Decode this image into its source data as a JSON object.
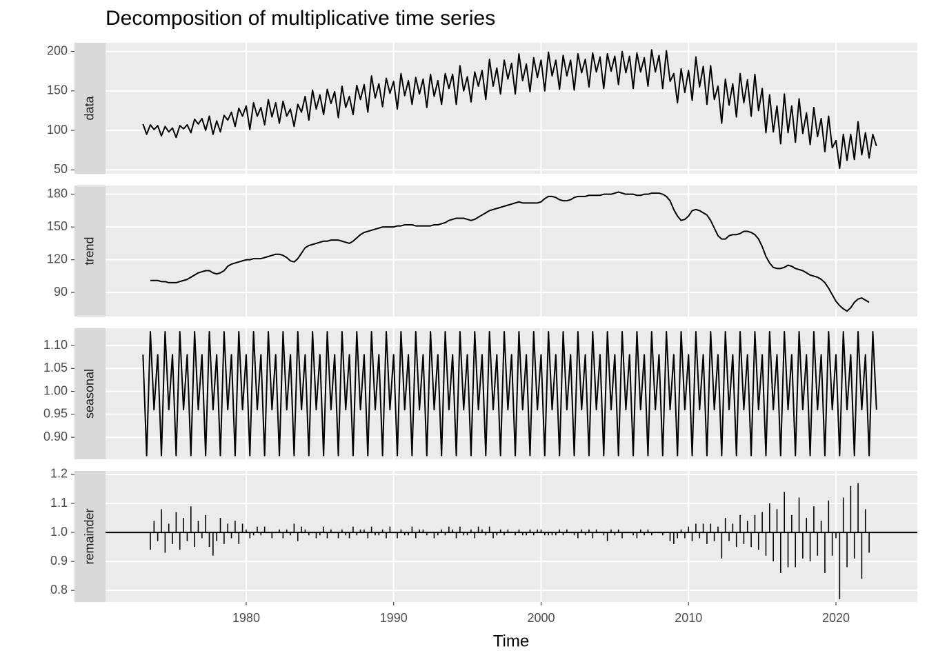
{
  "chart_data": {
    "type": "line",
    "title": "Decomposition of multiplicative time series",
    "xlabel": "Time",
    "grid": true,
    "xlim": [
      1970.46,
      2025.52
    ],
    "xticks": [
      1980,
      1990,
      2000,
      2010,
      2020
    ],
    "x": [
      1973,
      1973.25,
      1973.5,
      1973.75,
      1974,
      1974.25,
      1974.5,
      1974.75,
      1975,
      1975.25,
      1975.5,
      1975.75,
      1976,
      1976.25,
      1976.5,
      1976.75,
      1977,
      1977.25,
      1977.5,
      1977.75,
      1978,
      1978.25,
      1978.5,
      1978.75,
      1979,
      1979.25,
      1979.5,
      1979.75,
      1980,
      1980.25,
      1980.5,
      1980.75,
      1981,
      1981.25,
      1981.5,
      1981.75,
      1982,
      1982.25,
      1982.5,
      1982.75,
      1983,
      1983.25,
      1983.5,
      1983.75,
      1984,
      1984.25,
      1984.5,
      1984.75,
      1985,
      1985.25,
      1985.5,
      1985.75,
      1986,
      1986.25,
      1986.5,
      1986.75,
      1987,
      1987.25,
      1987.5,
      1987.75,
      1988,
      1988.25,
      1988.5,
      1988.75,
      1989,
      1989.25,
      1989.5,
      1989.75,
      1990,
      1990.25,
      1990.5,
      1990.75,
      1991,
      1991.25,
      1991.5,
      1991.75,
      1992,
      1992.25,
      1992.5,
      1992.75,
      1993,
      1993.25,
      1993.5,
      1993.75,
      1994,
      1994.25,
      1994.5,
      1994.75,
      1995,
      1995.25,
      1995.5,
      1995.75,
      1996,
      1996.25,
      1996.5,
      1996.75,
      1997,
      1997.25,
      1997.5,
      1997.75,
      1998,
      1998.25,
      1998.5,
      1998.75,
      1999,
      1999.25,
      1999.5,
      1999.75,
      2000,
      2000.25,
      2000.5,
      2000.75,
      2001,
      2001.25,
      2001.5,
      2001.75,
      2002,
      2002.25,
      2002.5,
      2002.75,
      2003,
      2003.25,
      2003.5,
      2003.75,
      2004,
      2004.25,
      2004.5,
      2004.75,
      2005,
      2005.25,
      2005.5,
      2005.75,
      2006,
      2006.25,
      2006.5,
      2006.75,
      2007,
      2007.25,
      2007.5,
      2007.75,
      2008,
      2008.25,
      2008.5,
      2008.75,
      2009,
      2009.25,
      2009.5,
      2009.75,
      2010,
      2010.25,
      2010.5,
      2010.75,
      2011,
      2011.25,
      2011.5,
      2011.75,
      2012,
      2012.25,
      2012.5,
      2012.75,
      2013,
      2013.25,
      2013.5,
      2013.75,
      2014,
      2014.25,
      2014.5,
      2014.75,
      2015,
      2015.25,
      2015.5,
      2015.75,
      2016,
      2016.25,
      2016.5,
      2016.75,
      2017,
      2017.25,
      2017.5,
      2017.75,
      2018,
      2018.25,
      2018.5,
      2018.75,
      2019,
      2019.25,
      2019.5,
      2019.75,
      2020,
      2020.25,
      2020.5,
      2020.75,
      2021,
      2021.25,
      2021.5,
      2021.75,
      2022,
      2022.25,
      2022.5,
      2022.75
    ],
    "series": [
      {
        "name": "data",
        "type": "line",
        "color": "#000000",
        "ylim": [
          45,
          211
        ],
        "yticks": [
          50,
          100,
          150,
          200
        ],
        "values": [
          108,
          95,
          107,
          101,
          106,
          93,
          105,
          98,
          103,
          91,
          106,
          102,
          107,
          97,
          114,
          108,
          115,
          100,
          118,
          95,
          112,
          98,
          119,
          113,
          123,
          105,
          128,
          118,
          131,
          101,
          135,
          118,
          129,
          107,
          139,
          117,
          135,
          109,
          137,
          118,
          127,
          105,
          133,
          123,
          143,
          113,
          151,
          127,
          145,
          120,
          152,
          134,
          149,
          116,
          156,
          129,
          143,
          120,
          157,
          139,
          158,
          123,
          169,
          141,
          159,
          130,
          166,
          147,
          162,
          127,
          172,
          144,
          163,
          133,
          167,
          146,
          165,
          129,
          171,
          143,
          163,
          133,
          172,
          153,
          171,
          133,
          182,
          150,
          168,
          136,
          174,
          156,
          176,
          139,
          190,
          156,
          179,
          146,
          189,
          165,
          185,
          146,
          197,
          163,
          184,
          149,
          192,
          167,
          189,
          150,
          199,
          169,
          189,
          152,
          195,
          169,
          189,
          151,
          197,
          173,
          190,
          155,
          198,
          174,
          193,
          153,
          197,
          175,
          194,
          158,
          200,
          173,
          194,
          153,
          198,
          174,
          192,
          156,
          202,
          174,
          195,
          153,
          201,
          162,
          172,
          135,
          178,
          148,
          176,
          138,
          193,
          155,
          181,
          133,
          182,
          139,
          156,
          109,
          165,
          132,
          159,
          117,
          172,
          135,
          164,
          118,
          171,
          125,
          153,
          97,
          145,
          98,
          131,
          83,
          146,
          97,
          131,
          85,
          140,
          96,
          122,
          82,
          129,
          92,
          115,
          73,
          118,
          78,
          87,
          52,
          95,
          62,
          95,
          63,
          111,
          69,
          97,
          65,
          95,
          80
        ]
      },
      {
        "name": "trend",
        "type": "line",
        "color": "#000000",
        "ylim": [
          68,
          188
        ],
        "yticks": [
          90,
          120,
          150,
          180
        ],
        "values": [
          null,
          null,
          101,
          101,
          101,
          100,
          100,
          99,
          99,
          99,
          100,
          101,
          102,
          104,
          106,
          108,
          109,
          110,
          110,
          108,
          107,
          108,
          110,
          114,
          116,
          117,
          118,
          119,
          120,
          120,
          121,
          121,
          121,
          122,
          123,
          124,
          125,
          125,
          124,
          122,
          119,
          118,
          121,
          126,
          131,
          133,
          134,
          135,
          136,
          137,
          137,
          138,
          138,
          138,
          137,
          136,
          135,
          137,
          140,
          143,
          145,
          146,
          147,
          148,
          149,
          150,
          150,
          150,
          150,
          151,
          151,
          152,
          152,
          152,
          151,
          151,
          151,
          151,
          151,
          152,
          152,
          153,
          154,
          156,
          157,
          158,
          158,
          158,
          157,
          156,
          157,
          159,
          161,
          163,
          165,
          166,
          167,
          168,
          169,
          170,
          171,
          172,
          173,
          172,
          172,
          172,
          172,
          172,
          173,
          176,
          178,
          178,
          177,
          175,
          174,
          174,
          175,
          177,
          178,
          178,
          178,
          179,
          179,
          179,
          179,
          180,
          180,
          180,
          181,
          182,
          181,
          180,
          180,
          180,
          179,
          179,
          180,
          180,
          181,
          181,
          181,
          180,
          178,
          174,
          166,
          160,
          156,
          157,
          160,
          165,
          166,
          165,
          163,
          161,
          156,
          149,
          142,
          139,
          139,
          142,
          143,
          143,
          144,
          146,
          146,
          145,
          143,
          139,
          132,
          123,
          117,
          113,
          112,
          112,
          113,
          115,
          114,
          112,
          111,
          110,
          108,
          106,
          105,
          104,
          102,
          99,
          94,
          88,
          82,
          78,
          75,
          73,
          76,
          81,
          84,
          85,
          83,
          81,
          null,
          null
        ]
      },
      {
        "name": "seasonal",
        "type": "line",
        "color": "#000000",
        "ylim": [
          0.852,
          1.1376
        ],
        "yticks": [
          {
            "value": 0.9,
            "label": "0.90"
          },
          0.95,
          {
            "value": 1.0,
            "label": "1.00"
          },
          1.05,
          {
            "value": 1.1,
            "label": "1.10"
          }
        ],
        "values": [
          1.08,
          0.86,
          1.13,
          0.96,
          1.08,
          0.86,
          1.13,
          0.96,
          1.08,
          0.86,
          1.13,
          0.96,
          1.08,
          0.86,
          1.13,
          0.96,
          1.08,
          0.86,
          1.13,
          0.96,
          1.08,
          0.86,
          1.13,
          0.96,
          1.08,
          0.86,
          1.13,
          0.96,
          1.08,
          0.86,
          1.13,
          0.96,
          1.08,
          0.86,
          1.13,
          0.96,
          1.08,
          0.86,
          1.13,
          0.96,
          1.08,
          0.86,
          1.13,
          0.96,
          1.08,
          0.86,
          1.13,
          0.96,
          1.08,
          0.86,
          1.13,
          0.96,
          1.08,
          0.86,
          1.13,
          0.96,
          1.08,
          0.86,
          1.13,
          0.96,
          1.08,
          0.86,
          1.13,
          0.96,
          1.08,
          0.86,
          1.13,
          0.96,
          1.08,
          0.86,
          1.13,
          0.96,
          1.08,
          0.86,
          1.13,
          0.96,
          1.08,
          0.86,
          1.13,
          0.96,
          1.08,
          0.86,
          1.13,
          0.96,
          1.08,
          0.86,
          1.13,
          0.96,
          1.08,
          0.86,
          1.13,
          0.96,
          1.08,
          0.86,
          1.13,
          0.96,
          1.08,
          0.86,
          1.13,
          0.96,
          1.08,
          0.86,
          1.13,
          0.96,
          1.08,
          0.86,
          1.13,
          0.96,
          1.08,
          0.86,
          1.13,
          0.96,
          1.08,
          0.86,
          1.13,
          0.96,
          1.08,
          0.86,
          1.13,
          0.96,
          1.08,
          0.86,
          1.13,
          0.96,
          1.08,
          0.86,
          1.13,
          0.96,
          1.08,
          0.86,
          1.13,
          0.96,
          1.08,
          0.86,
          1.13,
          0.96,
          1.08,
          0.86,
          1.13,
          0.96,
          1.08,
          0.86,
          1.13,
          0.96,
          1.08,
          0.86,
          1.13,
          0.96,
          1.08,
          0.86,
          1.13,
          0.96,
          1.08,
          0.86,
          1.13,
          0.96,
          1.08,
          0.86,
          1.13,
          0.96,
          1.08,
          0.86,
          1.13,
          0.96,
          1.08,
          0.86,
          1.13,
          0.96,
          1.08,
          0.86,
          1.13,
          0.96,
          1.08,
          0.86,
          1.13,
          0.96,
          1.08,
          0.86,
          1.13,
          0.96,
          1.08,
          0.86,
          1.13,
          0.96,
          1.08,
          0.86,
          1.13,
          0.96,
          1.08,
          0.86,
          1.13,
          0.96,
          1.08,
          0.86,
          1.13,
          0.96,
          1.08,
          0.86,
          1.13,
          0.96
        ]
      },
      {
        "name": "remainder",
        "type": "bar",
        "color": "#000000",
        "baseline": 1,
        "ylim": [
          0.76,
          1.2118
        ],
        "yticks": [
          0.8,
          0.9,
          {
            "value": 1.0,
            "label": "1.0"
          },
          1.1,
          1.2
        ],
        "values": [
          null,
          null,
          0.94,
          1.04,
          0.97,
          1.08,
          0.93,
          1.03,
          0.96,
          1.07,
          0.94,
          1.05,
          0.97,
          1.09,
          0.95,
          1.04,
          0.98,
          1.06,
          0.95,
          0.92,
          0.97,
          1.05,
          0.96,
          1.03,
          0.98,
          1.04,
          0.96,
          1.03,
          1.01,
          0.98,
          0.99,
          1.02,
          0.99,
          1.02,
          1.0,
          0.98,
          1.0,
          1.01,
          0.98,
          1.01,
          0.99,
          1.03,
          0.97,
          1.02,
          1.01,
          0.99,
          1.0,
          0.98,
          0.99,
          1.02,
          0.98,
          1.01,
          1.0,
          0.98,
          1.01,
          0.99,
          0.98,
          1.02,
          0.99,
          1.01,
          1.01,
          0.98,
          1.02,
          0.99,
          0.99,
          1.01,
          0.98,
          1.02,
          1.0,
          0.98,
          1.01,
          0.99,
          0.99,
          1.02,
          0.98,
          1.01,
          1.01,
          0.99,
          1.0,
          0.98,
          0.99,
          1.01,
          0.99,
          1.02,
          1.01,
          0.98,
          1.02,
          0.99,
          0.99,
          1.01,
          0.98,
          1.02,
          1.01,
          0.99,
          1.02,
          0.98,
          0.99,
          1.01,
          0.99,
          1.01,
          1.0,
          0.99,
          1.01,
          0.99,
          0.99,
          1.01,
          0.99,
          1.01,
          1.01,
          0.99,
          0.99,
          0.99,
          0.99,
          1.01,
          0.99,
          1.01,
          1.0,
          0.99,
          0.98,
          1.01,
          0.99,
          1.01,
          0.98,
          1.01,
          1.0,
          0.99,
          0.97,
          1.01,
          0.99,
          1.01,
          0.98,
          1.0,
          1.0,
          0.99,
          0.98,
          1.01,
          0.99,
          1.01,
          0.99,
          1.0,
          1.0,
          0.99,
          1.0,
          0.97,
          0.96,
          0.98,
          1.01,
          0.98,
          1.02,
          0.97,
          1.03,
          0.98,
          1.03,
          0.96,
          1.03,
          0.97,
          1.02,
          0.91,
          1.05,
          0.97,
          1.03,
          0.95,
          1.06,
          0.96,
          1.04,
          0.95,
          1.06,
          0.94,
          1.07,
          0.92,
          1.1,
          0.9,
          1.08,
          0.86,
          1.14,
          0.88,
          1.06,
          0.88,
          1.12,
          0.91,
          1.05,
          0.9,
          1.09,
          0.92,
          1.04,
          0.86,
          1.11,
          0.92,
          0.98,
          0.77,
          1.12,
          0.88,
          1.16,
          0.91,
          1.17,
          0.84,
          1.08,
          0.93,
          null,
          null
        ]
      }
    ]
  }
}
